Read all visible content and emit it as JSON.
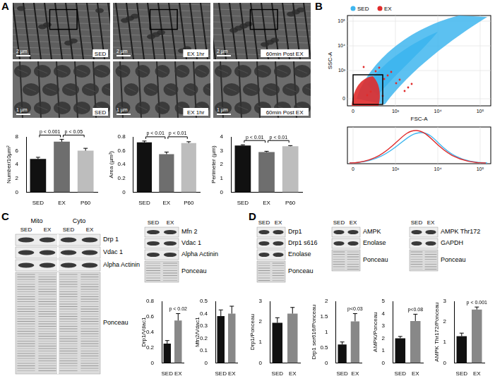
{
  "panels": {
    "A": {
      "label": "A",
      "images": [
        {
          "label": "SED",
          "scale_top": "2 µm",
          "scale_bottom": "1 µm"
        },
        {
          "label": "EX 1hr",
          "scale_top": "2 µm",
          "scale_bottom": "1 µm"
        },
        {
          "label": "60min Post EX",
          "scale_top": "2 µm",
          "scale_bottom": "1 µm"
        }
      ]
    },
    "B": {
      "label": "B",
      "legend": [
        {
          "name": "SED",
          "color": "#3fb6ef"
        },
        {
          "name": "EX",
          "color": "#e02b2b"
        }
      ],
      "scatter": {
        "x_label": "FSC-A",
        "y_label": "SSC-A",
        "xticks": [
          "0",
          "10³",
          "10⁴",
          "10⁵"
        ],
        "yticks": [
          "10⁵",
          "10⁴",
          "10³",
          "0"
        ]
      },
      "histogram": {
        "xticks": [
          "0",
          "10³",
          "10⁴",
          "10⁵"
        ]
      }
    },
    "C": {
      "label": "C",
      "blots": [
        {
          "groups": [
            "Mito",
            "Cyto"
          ],
          "lanes": [
            "SED",
            "EX",
            "SED",
            "EX"
          ],
          "rows": [
            "Drp 1",
            "Vdac 1",
            "Alpha Actinin",
            "Ponceau"
          ]
        },
        {
          "lanes": [
            "SED",
            "EX"
          ],
          "rows": [
            "Mfn 2",
            "Vdac 1",
            "Alpha Actinin",
            "Ponceau"
          ]
        }
      ]
    },
    "D": {
      "label": "D",
      "blots": [
        {
          "lanes": [
            "SED",
            "EX"
          ],
          "rows": [
            "Drp1",
            "Drp1 s616",
            "Enolase",
            "Ponceau"
          ]
        },
        {
          "lanes": [
            "SED",
            "EX"
          ],
          "rows": [
            "AMPK",
            "Enolase",
            "Ponceau"
          ]
        },
        {
          "lanes": [
            "SED",
            "EX"
          ],
          "rows": [
            "AMPK Thr172",
            "GAPDH",
            "Ponceau"
          ]
        }
      ]
    }
  },
  "chart_data": [
    {
      "type": "bar",
      "categories": [
        "SED",
        "EX",
        "P60"
      ],
      "values": [
        4.8,
        7.3,
        6.0
      ],
      "errors": [
        0.25,
        0.35,
        0.35
      ],
      "colors": [
        "#111111",
        "#6e6e6e",
        "#bdbdbd"
      ],
      "y_label": "Number/10µm²",
      "ylim": [
        0,
        8
      ],
      "yticks": [
        0,
        2,
        4,
        6,
        8
      ],
      "grid": false,
      "significance": [
        {
          "text": "p < 0.001",
          "from": "SED",
          "to": "EX"
        },
        {
          "text": "p < 0.05",
          "from": "EX",
          "to": "P60"
        }
      ]
    },
    {
      "type": "bar",
      "categories": [
        "SED",
        "EX",
        "P60"
      ],
      "values": [
        0.72,
        0.55,
        0.71
      ],
      "errors": [
        0.02,
        0.03,
        0.02
      ],
      "colors": [
        "#111111",
        "#6e6e6e",
        "#bdbdbd"
      ],
      "y_label": "Area (µm²)",
      "ylim": [
        0,
        0.8
      ],
      "yticks": [
        0,
        0.2,
        0.4,
        0.6,
        0.8
      ],
      "grid": false,
      "significance": [
        {
          "text": "p < 0.01",
          "from": "SED",
          "to": "EX"
        },
        {
          "text": "p < 0.01",
          "from": "EX",
          "to": "P60"
        }
      ]
    },
    {
      "type": "bar",
      "categories": [
        "SED",
        "EX",
        "P60"
      ],
      "values": [
        3.38,
        2.9,
        3.32
      ],
      "errors": [
        0.05,
        0.06,
        0.05
      ],
      "colors": [
        "#111111",
        "#6e6e6e",
        "#bdbdbd"
      ],
      "y_label": "Perimeter (µm)",
      "ylim": [
        0,
        4
      ],
      "yticks": [
        0,
        1,
        2,
        3,
        4
      ],
      "grid": false,
      "significance": [
        {
          "text": "p < 0.01",
          "from": "SED",
          "to": "EX"
        },
        {
          "text": "p < 0.01",
          "from": "EX",
          "to": "P60"
        }
      ]
    },
    {
      "type": "bar",
      "categories": [
        "SED",
        "EX"
      ],
      "values": [
        0.25,
        0.55
      ],
      "errors": [
        0.04,
        0.09
      ],
      "colors": [
        "#111111",
        "#888888"
      ],
      "y_label": "Drp1/Vdac1",
      "ylim": [
        0,
        0.8
      ],
      "yticks": [
        0,
        0.2,
        0.4,
        0.6,
        0.8
      ],
      "grid": false,
      "significance": [
        {
          "text": "p < 0.02",
          "at": "EX"
        }
      ]
    },
    {
      "type": "bar",
      "categories": [
        "SED",
        "EX"
      ],
      "values": [
        0.38,
        0.4
      ],
      "errors": [
        0.05,
        0.06
      ],
      "colors": [
        "#111111",
        "#888888"
      ],
      "y_label": "Mfn2/Vdac1",
      "ylim": [
        0,
        0.5
      ],
      "yticks": [
        0,
        0.1,
        0.2,
        0.3,
        0.4,
        0.5
      ],
      "grid": false
    },
    {
      "type": "bar",
      "categories": [
        "SED",
        "EX"
      ],
      "values": [
        1.95,
        2.4
      ],
      "errors": [
        0.25,
        0.3
      ],
      "colors": [
        "#111111",
        "#888888"
      ],
      "y_label": "Drp1/Ponceau",
      "ylim": [
        0,
        3
      ],
      "yticks": [
        0,
        1,
        2,
        3
      ],
      "grid": false
    },
    {
      "type": "bar",
      "categories": [
        "SED",
        "EX"
      ],
      "values": [
        0.6,
        1.35
      ],
      "errors": [
        0.08,
        0.25
      ],
      "colors": [
        "#111111",
        "#888888"
      ],
      "y_label": "Drp1 ser616/Ponceau",
      "ylim": [
        0,
        2
      ],
      "yticks": [
        0,
        0.5,
        1,
        1.5,
        2
      ],
      "grid": false,
      "significance": [
        {
          "text": "p<0.03",
          "at": "EX"
        }
      ]
    },
    {
      "type": "bar",
      "categories": [
        "SED",
        "EX"
      ],
      "values": [
        2.0,
        3.4
      ],
      "errors": [
        0.15,
        0.55
      ],
      "colors": [
        "#111111",
        "#888888"
      ],
      "y_label": "AMPK/Ponceau",
      "ylim": [
        0,
        5
      ],
      "yticks": [
        0,
        1,
        2,
        3,
        4,
        5
      ],
      "grid": false,
      "significance": [
        {
          "text": "p<0.08",
          "at": "EX"
        }
      ]
    },
    {
      "type": "bar",
      "categories": [
        "SED",
        "EX"
      ],
      "values": [
        1.3,
        2.6
      ],
      "errors": [
        0.15,
        0.12
      ],
      "colors": [
        "#111111",
        "#888888"
      ],
      "y_label": "AMPK Thr172/Ponceau",
      "ylim": [
        0,
        3
      ],
      "yticks": [
        0,
        1,
        2,
        3
      ],
      "grid": false,
      "significance": [
        {
          "text": "p < 0.001",
          "at": "EX"
        }
      ]
    }
  ]
}
